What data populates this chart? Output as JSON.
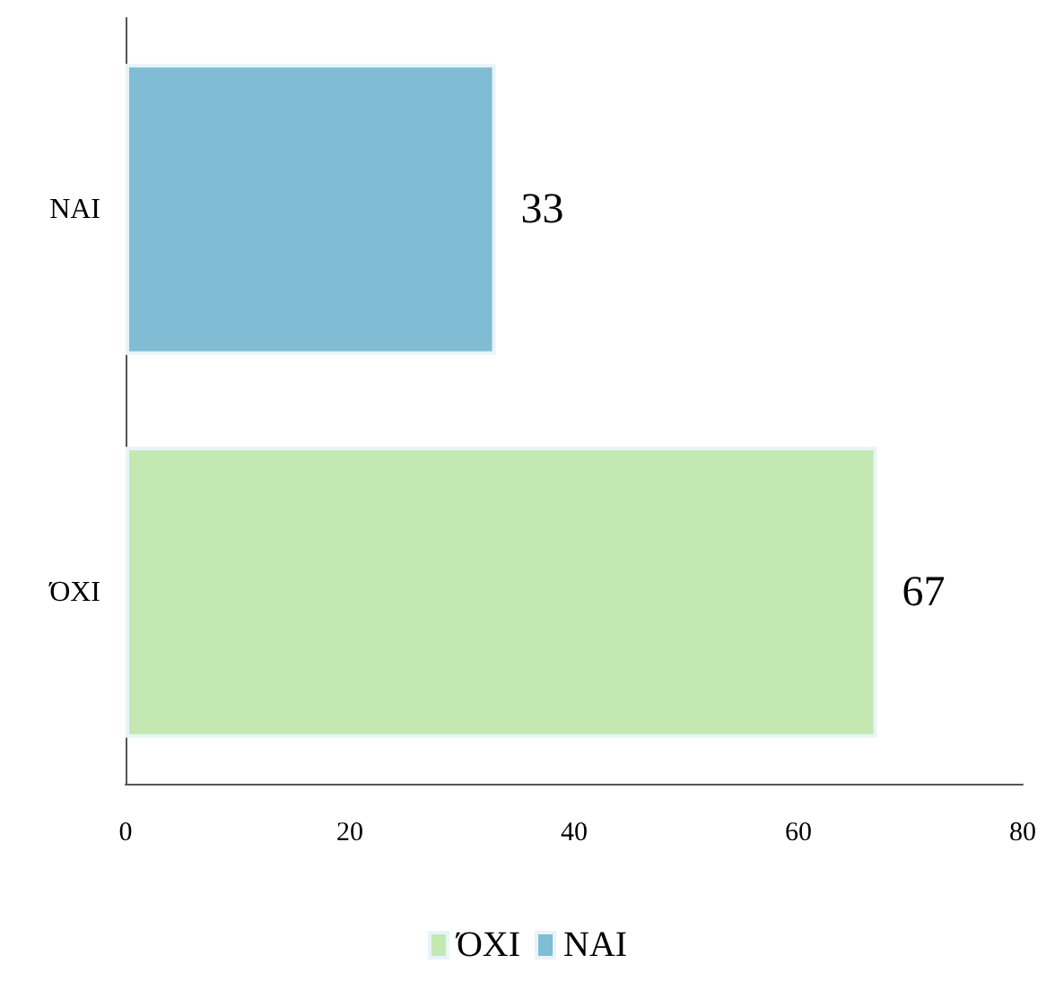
{
  "chart_data": {
    "type": "bar",
    "orientation": "horizontal",
    "stacked": true,
    "categories": [
      "ΝΑΙ",
      "ΌΧΙ"
    ],
    "series": [
      {
        "name": "ΌΧΙ",
        "color": "#c3e8b2",
        "values": [
          null,
          67
        ]
      },
      {
        "name": "ΝΑΙ",
        "color": "#80bcd3",
        "values": [
          33,
          null
        ]
      }
    ],
    "xlim": [
      0,
      80
    ],
    "xticks": [
      0,
      20,
      40,
      60,
      80
    ],
    "grid": false,
    "legend": "bottom",
    "data_labels": true
  }
}
